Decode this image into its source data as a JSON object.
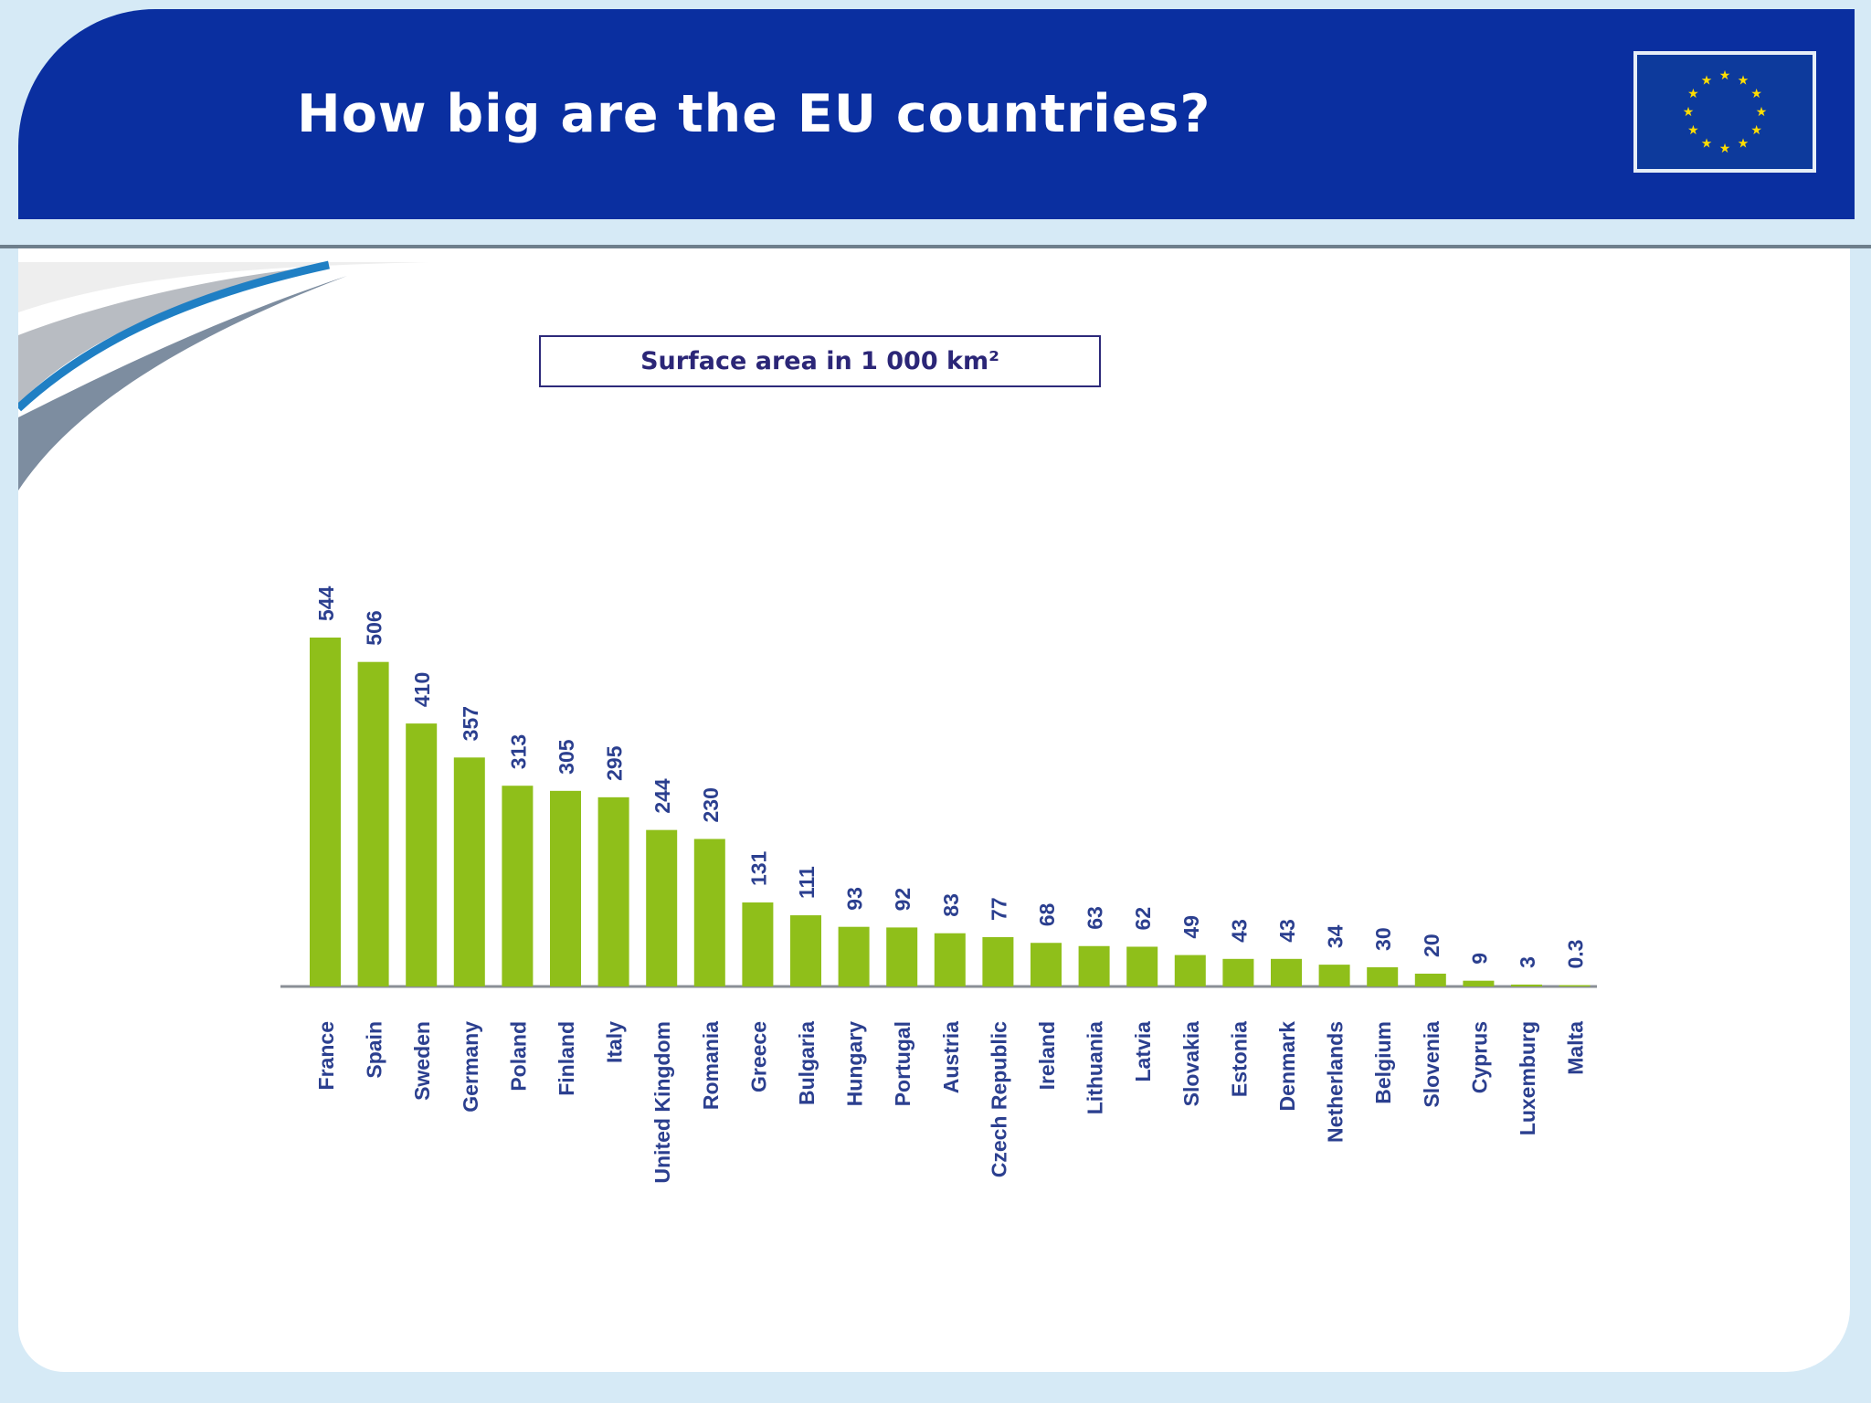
{
  "header": {
    "title": "How big are the EU countries?"
  },
  "colors": {
    "header_bg": "#0a2fa0",
    "bar_color": "#8fbf1a",
    "label_color": "#2b3f8f",
    "flag_blue": "#0d3a9c",
    "star_yellow": "#ffdd00"
  },
  "icons": {
    "flag": "eu-flag-icon"
  },
  "chart_data": {
    "type": "bar",
    "title": "Surface area in 1 000 km²",
    "xlabel": "",
    "ylabel": "",
    "ylim": [
      0,
      544
    ],
    "grid": false,
    "categories": [
      "France",
      "Spain",
      "Sweden",
      "Germany",
      "Poland",
      "Finland",
      "Italy",
      "United Kingdom",
      "Romania",
      "Greece",
      "Bulgaria",
      "Hungary",
      "Portugal",
      "Austria",
      "Czech Republic",
      "Ireland",
      "Lithuania",
      "Latvia",
      "Slovakia",
      "Estonia",
      "Denmark",
      "Netherlands",
      "Belgium",
      "Slovenia",
      "Cyprus",
      "Luxemburg",
      "Malta"
    ],
    "values": [
      544,
      506,
      410,
      357,
      313,
      305,
      295,
      244,
      230,
      131,
      111,
      93,
      92,
      83,
      77,
      68,
      63,
      62,
      49,
      43,
      43,
      34,
      30,
      20,
      9,
      3,
      0.3
    ],
    "value_labels": [
      "544",
      "506",
      "410",
      "357",
      "313",
      "305",
      "295",
      "244",
      "230",
      "131",
      "111",
      "93",
      "92",
      "83",
      "77",
      "68",
      "63",
      "62",
      "49",
      "43",
      "43",
      "34",
      "30",
      "20",
      "9",
      "3",
      "0.3"
    ]
  }
}
